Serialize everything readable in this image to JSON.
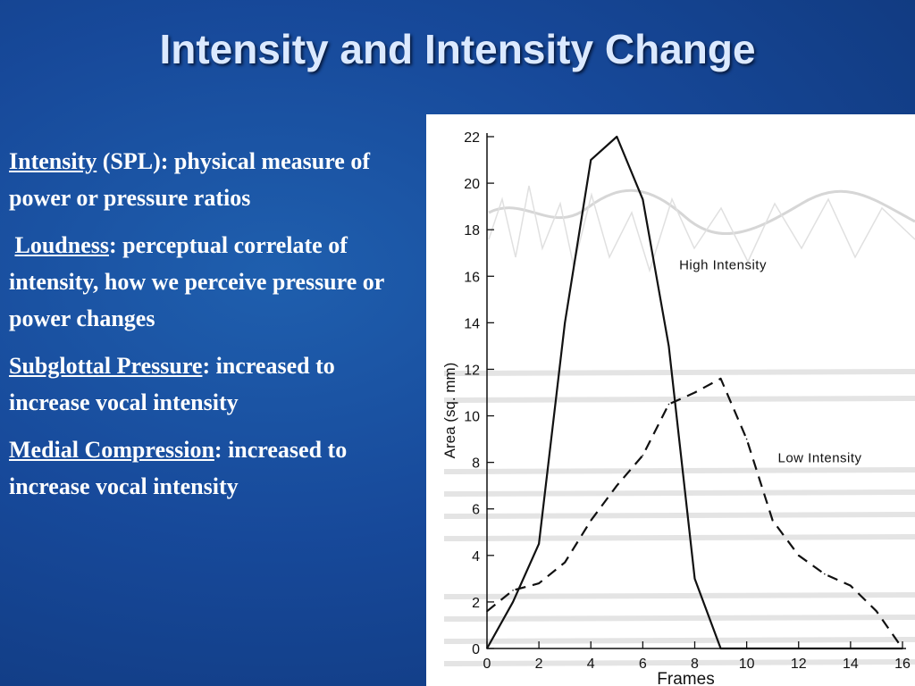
{
  "slide": {
    "title": "Intensity and Intensity Change"
  },
  "bullets": [
    {
      "term": "Intensity",
      "text": " (SPL): physical measure of power or pressure ratios",
      "lead_space": false
    },
    {
      "term": "Loudness",
      "text": ": perceptual correlate of intensity, how we perceive pressure or power changes",
      "lead_space": true
    },
    {
      "term": "Subglottal Pressure",
      "text": ": increased to increase vocal intensity",
      "lead_space": false
    },
    {
      "term": "Medial Compression",
      "text": ": increased to increase vocal intensity",
      "lead_space": false
    }
  ],
  "chart_data": {
    "type": "line",
    "title": "",
    "xlabel": "Frames",
    "ylabel": "Area  (sq. mm)",
    "xlim": [
      0,
      16
    ],
    "ylim": [
      0,
      22
    ],
    "x_ticks": [
      0,
      2,
      4,
      6,
      8,
      10,
      12,
      14,
      16
    ],
    "y_ticks": [
      0,
      2,
      4,
      6,
      8,
      10,
      12,
      14,
      16,
      18,
      20,
      22
    ],
    "grid": false,
    "series": [
      {
        "name": "High Intensity",
        "style": "solid",
        "x": [
          0,
          1,
          2,
          3,
          4,
          5,
          6,
          7,
          8,
          9,
          10,
          11,
          12,
          13,
          14,
          15,
          16
        ],
        "y": [
          0,
          2,
          4.5,
          14,
          21,
          22,
          19.3,
          13,
          3,
          0,
          0,
          0,
          0,
          0,
          0,
          0,
          0
        ]
      },
      {
        "name": "Low Intensity",
        "style": "dashed",
        "x": [
          0,
          1,
          2,
          3,
          4,
          5,
          6,
          7,
          8,
          9,
          10,
          11,
          12,
          13,
          14,
          15,
          16
        ],
        "y": [
          1.6,
          2.5,
          2.8,
          3.7,
          5.5,
          7,
          8.3,
          10.5,
          11,
          11.6,
          9,
          5.5,
          4,
          3.2,
          2.7,
          1.6,
          0
        ]
      }
    ],
    "colors": {
      "line": "#111111",
      "background": "#ffffff"
    }
  },
  "theme": {
    "background": "#17499a",
    "title_color": "#dbe9ff",
    "text_color": "#ffffff"
  }
}
